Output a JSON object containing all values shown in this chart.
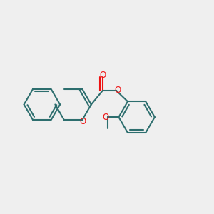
{
  "background_color": "#efefef",
  "bond_color": "#2d6e6e",
  "oxygen_color": "#ee1111",
  "bond_width": 1.5,
  "dbo": 0.055,
  "figsize": [
    3.0,
    3.0
  ],
  "dpi": 100,
  "xlim": [
    -2.1,
    2.1
  ],
  "ylim": [
    -1.0,
    1.0
  ]
}
